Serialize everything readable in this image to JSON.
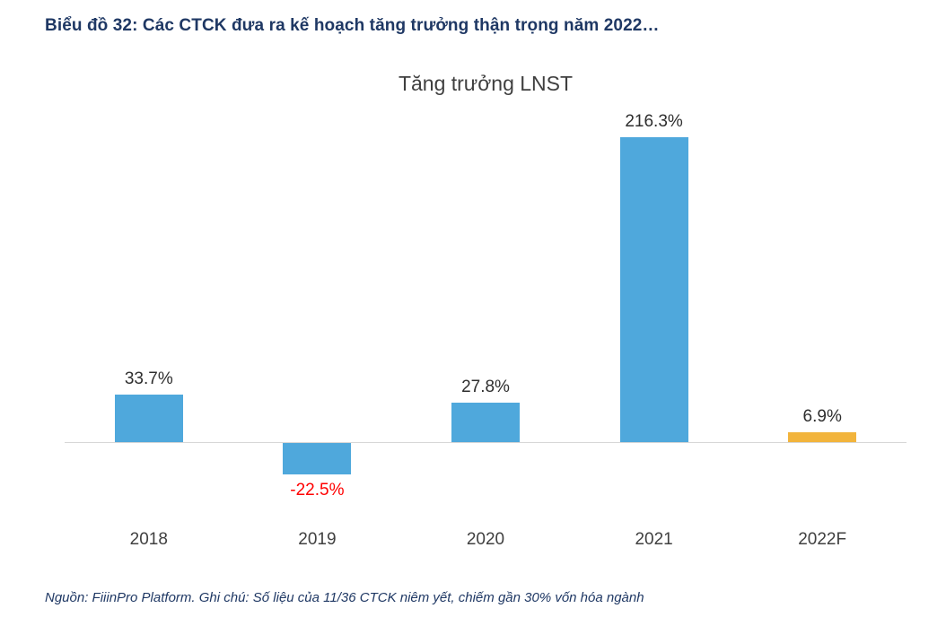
{
  "page": {
    "title": "Biểu đồ 32: Các CTCK đưa ra kế hoạch tăng trưởng thận trọng năm 2022…",
    "footnote": "Nguồn: FiiinPro Platform. Ghi chú: Số liệu của 11/36 CTCK niêm yết, chiếm gần 30% vốn hóa ngành"
  },
  "colors": {
    "title_navy": "#1F3864",
    "bar_blue": "#4FA8DC",
    "bar_orange": "#F2B43C",
    "negative_label_red": "#FF0000",
    "axis_line": "#D6D6D6",
    "value_label_dark": "#2E2E2E"
  },
  "chart_data": {
    "type": "bar",
    "title": "Tăng trưởng LNST",
    "categories": [
      "2018",
      "2019",
      "2020",
      "2021",
      "2022F"
    ],
    "values": [
      33.7,
      -22.5,
      27.8,
      216.3,
      6.9
    ],
    "value_labels": [
      "33.7%",
      "-22.5%",
      "27.8%",
      "216.3%",
      "6.9%"
    ],
    "bar_colors": [
      "#4FA8DC",
      "#4FA8DC",
      "#4FA8DC",
      "#4FA8DC",
      "#F2B43C"
    ],
    "xlabel": "",
    "ylabel": "",
    "ylim": [
      -60,
      240
    ],
    "grid": false,
    "legend": false,
    "baseline": 0
  }
}
